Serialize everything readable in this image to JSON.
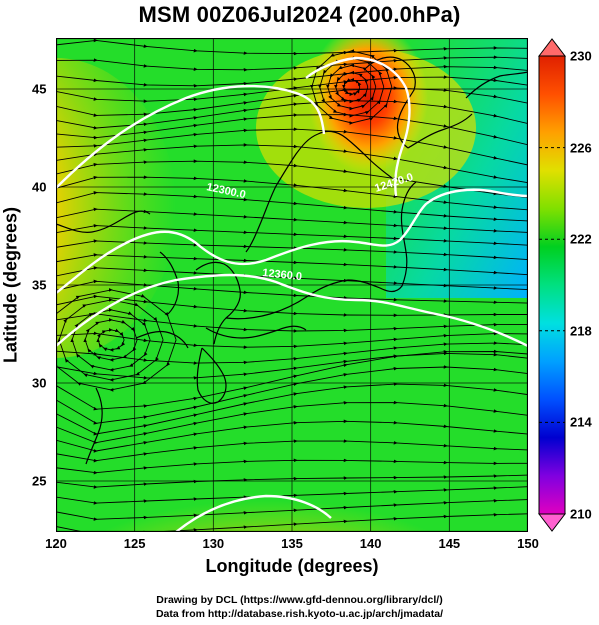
{
  "title": "MSM 00Z06Jul2024 (200.0hPa)",
  "x_axis": {
    "label": "Longitude (degrees)",
    "ticks": [
      "120",
      "125",
      "130",
      "135",
      "140",
      "145",
      "150"
    ],
    "range": [
      120,
      150
    ]
  },
  "y_axis": {
    "label": "Latitude  (degrees)",
    "ticks": [
      "25",
      "30",
      "35",
      "40",
      "45"
    ],
    "range": [
      22.4,
      47.6
    ]
  },
  "colorbar": {
    "ticks": [
      "230",
      "226",
      "222",
      "218",
      "214",
      "210"
    ],
    "range": [
      210,
      230
    ],
    "colors": [
      "#e000c0",
      "#8000e0",
      "#0000d0",
      "#0050ff",
      "#00a0ff",
      "#00e0e0",
      "#00e080",
      "#00d020",
      "#80e000",
      "#e0e000",
      "#ffa000",
      "#ff5000",
      "#e02000"
    ]
  },
  "contours": [
    {
      "label": "12300.0",
      "value": 12300
    },
    {
      "label": "12420.0",
      "value": 12420
    },
    {
      "label": "12360.0",
      "value": 12360
    }
  ],
  "credits": [
    "Drawing by DCL (https://www.gfd-dennou.org/library/dcl/)",
    "Data from http://database.rish.kyoto-u.ac.jp/arch/jmadata/"
  ]
}
